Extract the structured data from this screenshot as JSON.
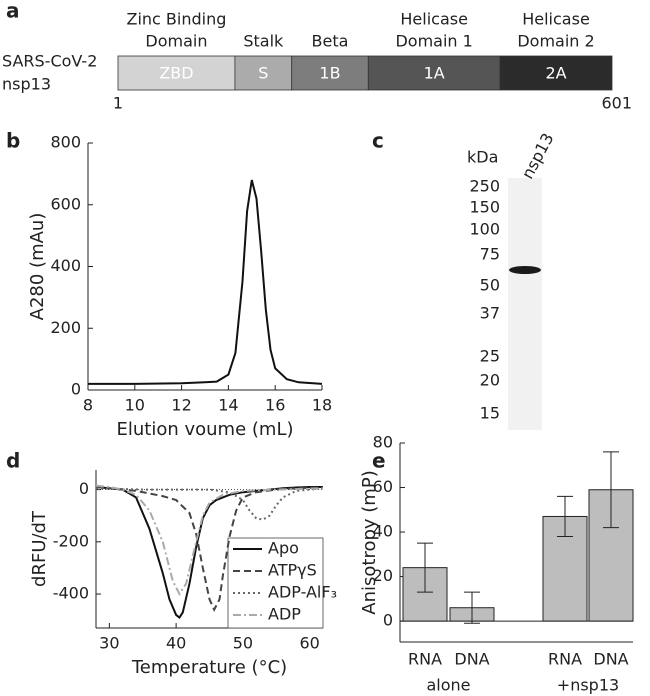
{
  "panel_labels": [
    "a",
    "b",
    "c",
    "d",
    "e"
  ],
  "domain_map": {
    "protein": [
      "SARS-CoV-2",
      "nsp13"
    ],
    "start": 1,
    "end": 601,
    "domains": [
      {
        "name": [
          "Zinc Binding",
          "Domain"
        ],
        "label": "ZBD",
        "from": 1,
        "to": 143,
        "color": "#d3d3d3"
      },
      {
        "name": [
          "Stalk"
        ],
        "label": "S",
        "from": 143,
        "to": 212,
        "color": "#ababab"
      },
      {
        "name": [
          "Beta"
        ],
        "label": "1B",
        "from": 212,
        "to": 305,
        "color": "#7d7d7d"
      },
      {
        "name": [
          "Helicase",
          "Domain 1"
        ],
        "label": "1A",
        "from": 305,
        "to": 465,
        "color": "#555555"
      },
      {
        "name": [
          "Helicase",
          "Domain 2"
        ],
        "label": "2A",
        "from": 465,
        "to": 601,
        "color": "#2b2b2b"
      }
    ]
  },
  "gel": {
    "unit_label": "kDa",
    "lane_label": "nsp13",
    "markers": [
      250,
      150,
      100,
      75,
      50,
      37,
      25,
      20,
      15
    ]
  },
  "chart_data": [
    {
      "type": "line",
      "xlabel": "Elution voume (mL)",
      "ylabel": "A280 (mAu)",
      "x": [
        8,
        10,
        12,
        13,
        13.5,
        14,
        14.3,
        14.6,
        14.8,
        15,
        15.2,
        15.4,
        15.6,
        15.8,
        16,
        16.5,
        17,
        18
      ],
      "values": [
        20,
        20,
        22,
        25,
        27,
        50,
        120,
        350,
        580,
        680,
        620,
        450,
        260,
        130,
        70,
        35,
        25,
        20
      ],
      "color": "#111111",
      "xlim": [
        8,
        18
      ],
      "xticks": [
        8,
        10,
        12,
        14,
        16,
        18
      ],
      "ylim": [
        0,
        800
      ],
      "yticks": [
        0,
        200,
        400,
        600,
        800
      ]
    },
    {
      "type": "line",
      "xlabel": "Temperature (°C)",
      "ylabel": "dRFU/dT",
      "zero_line": true,
      "xlim": [
        28,
        62
      ],
      "xticks": [
        30,
        40,
        50,
        60
      ],
      "ylim": [
        -530,
        75
      ],
      "yticks": [
        -400,
        -200,
        0
      ],
      "legend": "lower right",
      "series": [
        {
          "name": "Apo",
          "color": "#111111",
          "dash": "solid",
          "x": [
            28,
            30,
            32,
            34,
            36,
            38,
            39,
            40,
            40.5,
            41,
            42,
            43,
            44,
            45,
            46,
            48,
            50,
            52,
            54,
            56,
            58,
            60,
            62
          ],
          "values": [
            10,
            5,
            0,
            -30,
            -150,
            -320,
            -420,
            -480,
            -490,
            -470,
            -360,
            -220,
            -110,
            -60,
            -40,
            -20,
            -10,
            -5,
            0,
            5,
            8,
            10,
            10
          ]
        },
        {
          "name": "ATPγS",
          "color": "#444444",
          "dash": "dashed",
          "x": [
            28,
            30,
            32,
            34,
            36,
            38,
            40,
            42,
            43,
            44,
            45,
            45.7,
            46.5,
            47,
            48,
            49,
            50,
            52,
            55,
            58,
            62
          ],
          "values": [
            10,
            5,
            0,
            -5,
            -15,
            -25,
            -40,
            -90,
            -170,
            -300,
            -420,
            -460,
            -420,
            -330,
            -180,
            -80,
            -30,
            -10,
            0,
            5,
            8
          ]
        },
        {
          "name": "ADP-AlF₃",
          "color": "#666666",
          "dash": "dotted",
          "x": [
            28,
            35,
            45,
            48,
            50,
            51,
            52,
            53,
            54,
            55,
            56,
            58,
            62
          ],
          "values": [
            5,
            0,
            0,
            -10,
            -40,
            -80,
            -110,
            -115,
            -100,
            -60,
            -30,
            -5,
            5
          ]
        },
        {
          "name": "ADP",
          "color": "#aaaaaa",
          "dash": "dashdot",
          "x": [
            28,
            30,
            32,
            34,
            36,
            38,
            39.5,
            40.5,
            41.5,
            43,
            44,
            45,
            47,
            50,
            55,
            62
          ],
          "values": [
            15,
            10,
            0,
            -20,
            -80,
            -200,
            -350,
            -400,
            -360,
            -200,
            -100,
            -50,
            -20,
            -5,
            0,
            5
          ]
        }
      ]
    },
    {
      "type": "bar",
      "ylabel": "Anisotropy (mP)",
      "categories": [
        "RNA",
        "DNA",
        "RNA",
        "DNA"
      ],
      "groups": [
        "alone",
        "+nsp13"
      ],
      "values": [
        24,
        6,
        47,
        59
      ],
      "errors": [
        11,
        7,
        9,
        17
      ],
      "color": "#bdbdbd",
      "ylim": [
        -9.4,
        80
      ],
      "yticks": [
        0,
        20,
        40,
        60,
        80
      ]
    }
  ]
}
